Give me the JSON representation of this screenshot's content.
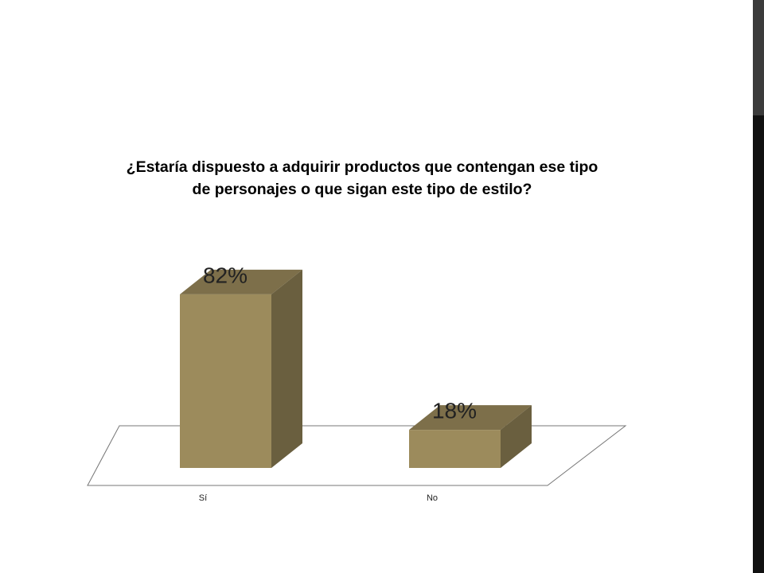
{
  "chart_data": {
    "type": "bar3d",
    "title": "¿Estaría dispuesto a adquirir productos que contengan ese tipo de personajes o que sigan este tipo de estilo?",
    "categories": [
      "Sí",
      "No"
    ],
    "values": [
      82,
      18
    ],
    "value_labels": [
      "82%",
      "18%"
    ],
    "color": "#9c8b5c"
  }
}
